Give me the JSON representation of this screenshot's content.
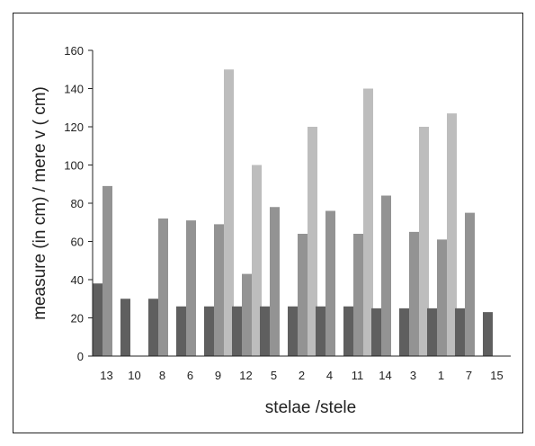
{
  "chart_data": {
    "type": "bar",
    "xlabel": "stelae /stele",
    "ylabel": "measure (in cm) / mere v ( cm)",
    "ylim": [
      0,
      160
    ],
    "yticks": [
      0,
      20,
      40,
      60,
      80,
      100,
      120,
      140,
      160
    ],
    "categories": [
      "13",
      "10",
      "8",
      "6",
      "9",
      "12",
      "5",
      "2",
      "4",
      "11",
      "14",
      "3",
      "1",
      "7",
      "15"
    ],
    "series": [
      {
        "color": "#5f5f5f",
        "values": [
          38,
          30,
          30,
          26,
          26,
          26,
          26,
          26,
          26,
          26,
          25,
          25,
          25,
          25,
          23
        ]
      },
      {
        "color": "#939393",
        "values": [
          89,
          null,
          72,
          71,
          69,
          43,
          78,
          64,
          76,
          64,
          84,
          65,
          61,
          75,
          null
        ]
      },
      {
        "color": "#bdbdbd",
        "values": [
          null,
          null,
          null,
          null,
          150,
          100,
          null,
          120,
          null,
          140,
          null,
          120,
          127,
          null,
          null
        ]
      }
    ],
    "grid": false,
    "legend": "none"
  }
}
